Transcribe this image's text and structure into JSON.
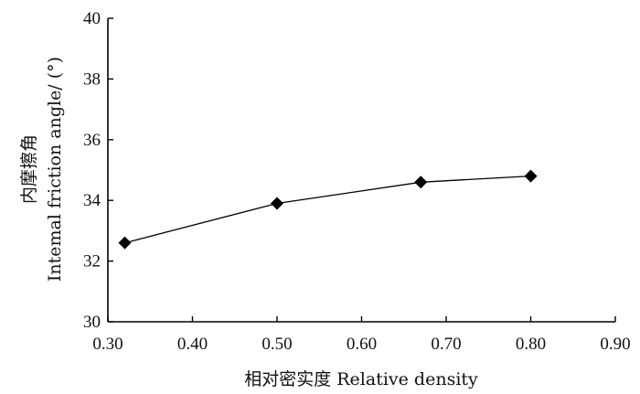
{
  "chart_data": {
    "type": "line",
    "xlabel": "相对密实度 Relative density",
    "ylabel_cn": "内摩擦角",
    "ylabel_en": "Intemal friction angle/ (°)",
    "xlim": [
      0.3,
      0.9
    ],
    "ylim": [
      30,
      40
    ],
    "xticks": [
      "0.30",
      "0.40",
      "0.50",
      "0.60",
      "0.70",
      "0.80",
      "0.90"
    ],
    "yticks": [
      "30",
      "32",
      "34",
      "36",
      "38",
      "40"
    ],
    "grid": false,
    "marker": "diamond",
    "series": [
      {
        "x": [
          0.32,
          0.5,
          0.67,
          0.8
        ],
        "y": [
          32.6,
          33.9,
          34.6,
          34.8
        ]
      }
    ]
  }
}
